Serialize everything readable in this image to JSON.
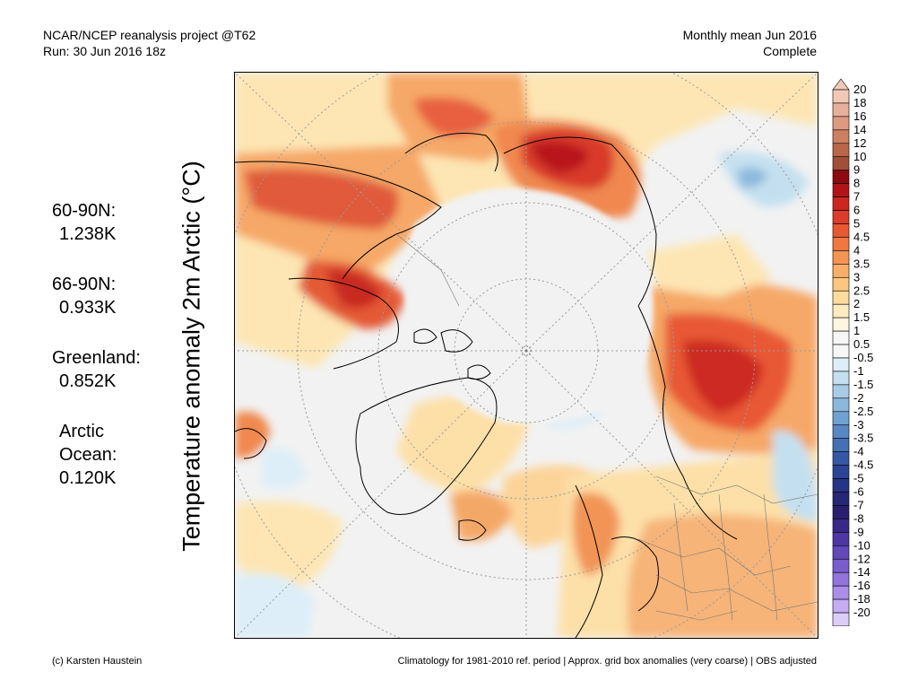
{
  "header": {
    "project": "NCAR/NCEP reanalysis project @T62",
    "run": "Run: 30 Jun 2016 18z",
    "period": "Monthly mean Jun 2016",
    "status": "Complete"
  },
  "y_label": "Temperature anomaly 2m Arctic (°C)",
  "stats": [
    {
      "label": "60-90N:",
      "value": "1.238K"
    },
    {
      "label": "66-90N:",
      "value": "0.933K"
    },
    {
      "label": "Greenland:",
      "value": "0.852K"
    },
    {
      "label": "Arctic Ocean:",
      "value": "0.120K"
    }
  ],
  "colorbar": {
    "labels": [
      "20",
      "18",
      "16",
      "14",
      "12",
      "10",
      "9",
      "8",
      "7",
      "6",
      "5",
      "4.5",
      "4",
      "3.5",
      "3",
      "2.5",
      "2",
      "1.5",
      "1",
      "0.5",
      "-0.5",
      "-1",
      "-1.5",
      "-2",
      "-2.5",
      "-3",
      "-3.5",
      "-4",
      "-4.5",
      "-5",
      "-6",
      "-7",
      "-8",
      "-9",
      "-10",
      "-12",
      "-14",
      "-16",
      "-18",
      "-20"
    ],
    "colors": [
      "#f0c8b4",
      "#e8b098",
      "#de9a80",
      "#cc8060",
      "#b86848",
      "#a05038",
      "#8c0a10",
      "#b01418",
      "#cc2620",
      "#dc3c28",
      "#e85832",
      "#f07840",
      "#f49452",
      "#f8ae68",
      "#fac680",
      "#fcdc9c",
      "#fdebc0",
      "#fef6e0",
      "#f6f6f6",
      "#f6f6f6",
      "#ddeef8",
      "#c4e0f0",
      "#a8cce8",
      "#8cb8dc",
      "#70a2d0",
      "#5888c4",
      "#4470b4",
      "#3658a4",
      "#2c4494",
      "#263484",
      "#262876",
      "#2a1e6e",
      "#3a2888",
      "#4e36a4",
      "#6448ba",
      "#7a5ccc",
      "#9274dc",
      "#aa8ee8",
      "#c6acf2",
      "#dcccf8"
    ]
  },
  "footer": {
    "credit": "(c) Karsten Haustein",
    "note": "Climatology for 1981-2010 ref. period | Approx. grid box anomalies (very coarse) | OBS adjusted"
  }
}
